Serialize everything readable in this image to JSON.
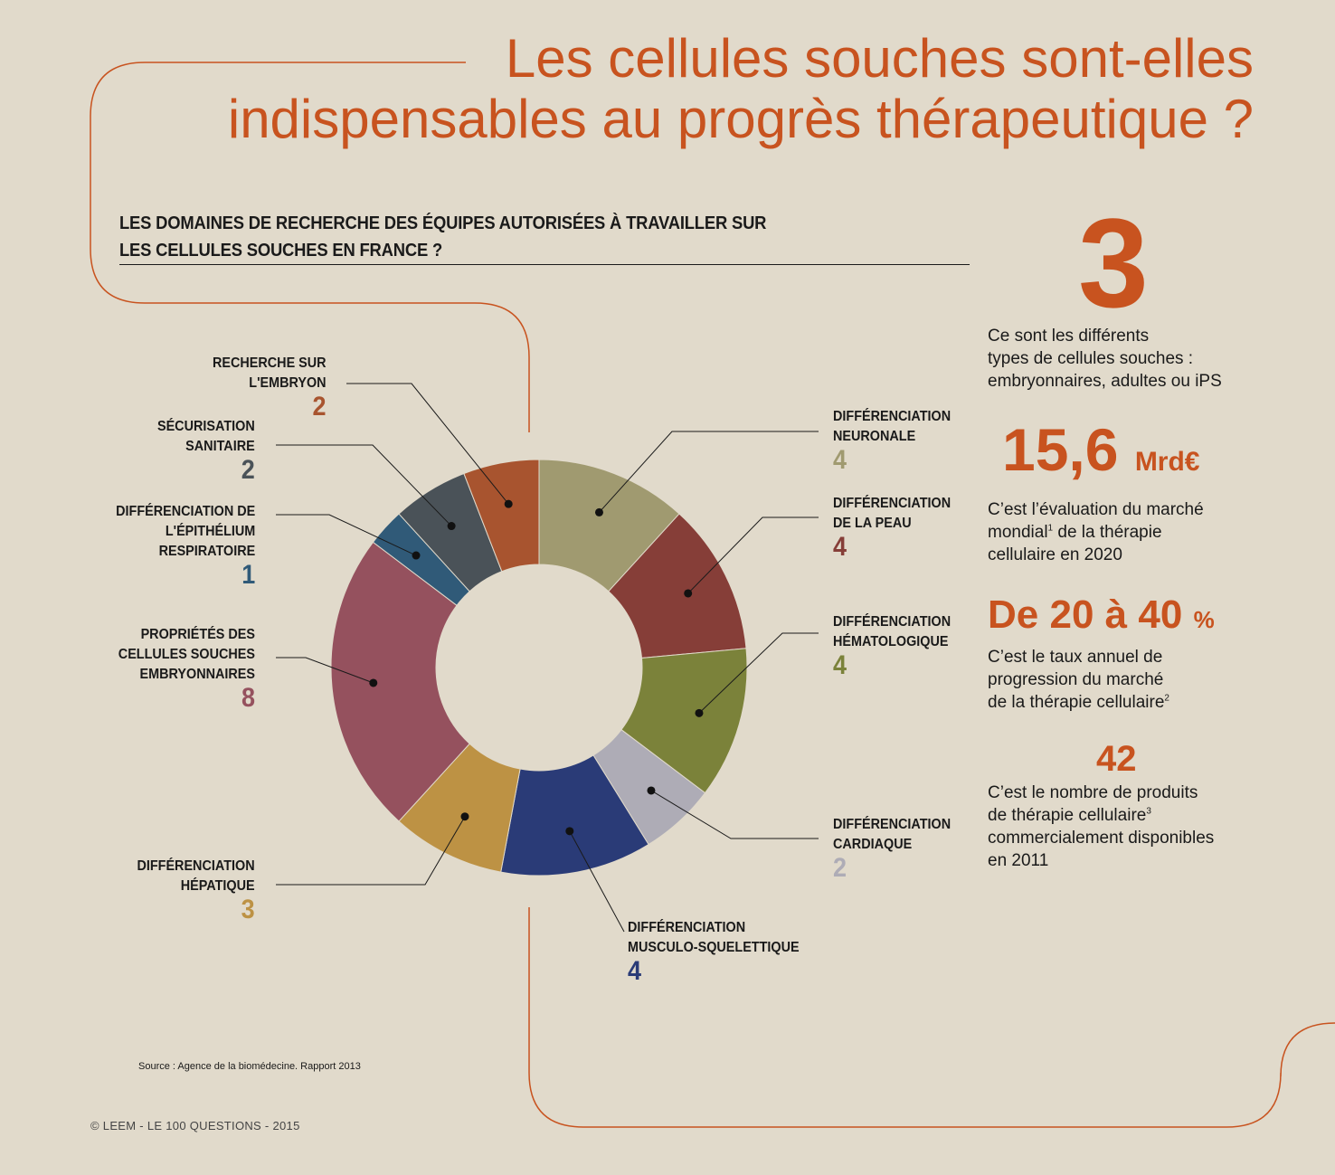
{
  "title": {
    "line1": "Les cellules souches sont-elles",
    "line2": "indispensables au progrès thérapeutique ?"
  },
  "subtitle": {
    "line1": "LES DOMAINES DE RECHERCHE DES ÉQUIPES AUTORISÉES À TRAVAILLER SUR",
    "line2": "LES CELLULES SOUCHES EN FRANCE ?"
  },
  "chart_data": {
    "type": "pie",
    "variant": "donut",
    "start": "top",
    "direction": "clockwise",
    "slices": [
      {
        "label_lines": [
          "DIFFÉRENCIATION",
          "NEURONALE"
        ],
        "value": 4,
        "color": "#a09a70"
      },
      {
        "label_lines": [
          "DIFFÉRENCIATION",
          "DE LA PEAU"
        ],
        "value": 4,
        "color": "#863e38"
      },
      {
        "label_lines": [
          "DIFFÉRENCIATION",
          "HÉMATOLOGIQUE"
        ],
        "value": 4,
        "color": "#7b823a"
      },
      {
        "label_lines": [
          "DIFFÉRENCIATION",
          "CARDIAQUE"
        ],
        "value": 2,
        "color": "#aeacb6"
      },
      {
        "label_lines": [
          "DIFFÉRENCIATION",
          "MUSCULO-SQUELETTIQUE"
        ],
        "value": 4,
        "color": "#2a3b77"
      },
      {
        "label_lines": [
          "DIFFÉRENCIATION",
          "HÉPATIQUE"
        ],
        "value": 3,
        "color": "#bd9244"
      },
      {
        "label_lines": [
          "PROPRIÉTÉS DES",
          "CELLULES SOUCHES",
          "EMBRYONNAIRES"
        ],
        "value": 8,
        "color": "#95515e"
      },
      {
        "label_lines": [
          "DIFFÉRENCIATION DE",
          "L'ÉPITHÉLIUM",
          "RESPIRATOIRE"
        ],
        "value": 1,
        "color": "#305a78"
      },
      {
        "label_lines": [
          "SÉCURISATION",
          "SANITAIRE"
        ],
        "value": 2,
        "color": "#4a5258"
      },
      {
        "label_lines": [
          "RECHERCHE SUR",
          "L'EMBRYON"
        ],
        "value": 2,
        "color": "#a8542f"
      }
    ]
  },
  "stats": {
    "s1": {
      "value": "3",
      "text": [
        "Ce sont les différents",
        "types de cellules souches :",
        "embryonnaires, adultes ou iPS"
      ]
    },
    "s2": {
      "value": "15,6",
      "unit": "Mrd€",
      "text": [
        "C’est l’évaluation du marché",
        "mondial",
        "1",
        " de la thérapie",
        "cellulaire en 2020"
      ]
    },
    "s3": {
      "prefix": "De",
      "v1": "20",
      "mid": "à",
      "v2": "40",
      "unit": "%",
      "text": [
        "C’est le taux annuel de",
        "progression du marché",
        "de la thérapie cellulaire",
        "2"
      ]
    },
    "s4": {
      "value": "42",
      "text": [
        "C’est le nombre de produits",
        "de thérapie cellulaire",
        "3",
        "commercialement disponibles",
        "en 2011"
      ]
    }
  },
  "source": "Source : Agence de la biomédecine. Rapport 2013",
  "copyright": "© LEEM - LE 100 QUESTIONS - 2015",
  "colors": {
    "accent": "#c8531f",
    "background": "#e1dacb"
  }
}
